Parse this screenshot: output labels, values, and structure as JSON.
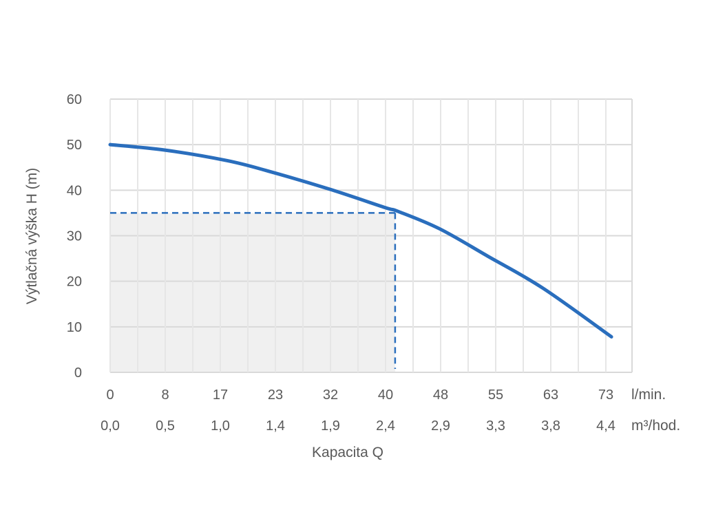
{
  "chart_data": {
    "type": "line",
    "title": "",
    "xlabel": "Kapacita Q",
    "ylabel": "Výtlačná výška H (m)",
    "ylim": [
      0,
      60
    ],
    "yticks": [
      "0",
      "10",
      "20",
      "30",
      "40",
      "50",
      "60"
    ],
    "x_units_primary": "l/min.",
    "x_units_secondary": "m³/hod.",
    "x_ticks_primary": [
      "0",
      "8",
      "17",
      "23",
      "32",
      "40",
      "48",
      "55",
      "63",
      "73"
    ],
    "x_ticks_secondary": [
      "0,0",
      "0,5",
      "1,0",
      "1,4",
      "1,9",
      "2,4",
      "2,9",
      "3,3",
      "3,8",
      "4,4"
    ],
    "xlim": [
      0,
      76
    ],
    "grid": true,
    "series": [
      {
        "color": "#2a6ebd",
        "x": [
          0,
          8,
          17,
          23,
          32,
          40,
          42,
          48,
          55,
          63,
          73
        ],
        "y": [
          50,
          48.8,
          46.5,
          44.2,
          40.2,
          36.2,
          35.3,
          31.5,
          25.5,
          18.5,
          7.8
        ]
      }
    ],
    "operating_point": {
      "x": 41.5,
      "y": 35
    },
    "colors": {
      "curve": "#2a6ebd",
      "grid": "#d9d9d9",
      "shade": "#f0f0f0",
      "text": "#595959"
    }
  }
}
